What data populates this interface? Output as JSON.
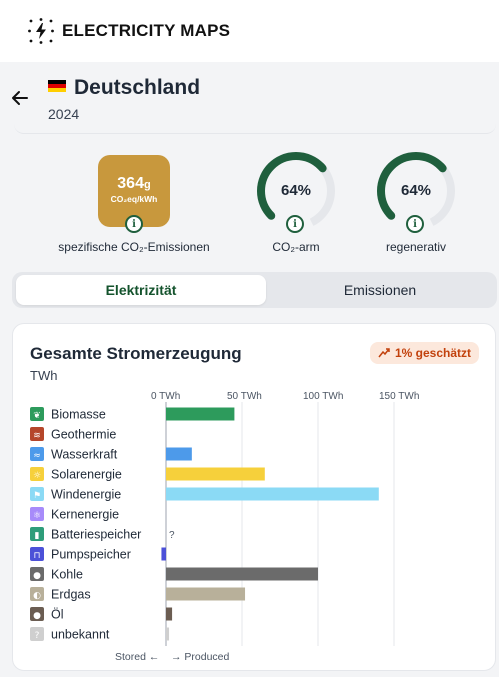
{
  "app": {
    "title": "ELECTRICITY MAPS"
  },
  "header": {
    "country": "Deutschland",
    "year": "2024"
  },
  "metrics": {
    "intensity": {
      "value": "364",
      "unit_suffix": "g",
      "unit": "CO₂eq/kWh",
      "label": "spezifische CO₂-Emissionen",
      "color": "#c8983d"
    },
    "low_carbon": {
      "value": "64%",
      "fraction": 0.64,
      "label": "CO₂-arm"
    },
    "renewable": {
      "value": "64%",
      "fraction": 0.64,
      "label": "regenerativ"
    },
    "gauge_color": "#1f5f3d",
    "info_glyph": "i"
  },
  "tabs": [
    {
      "label": "Elektrizität",
      "active": true
    },
    {
      "label": "Emissionen",
      "active": false
    }
  ],
  "panel": {
    "title": "Gesamte Stromerzeugung",
    "unit": "TWh",
    "estimate_badge": "1% geschätzt",
    "footer_stored": "Stored ←",
    "footer_produced": "→ Produced",
    "missing_marker": "?"
  },
  "chart_data": {
    "type": "bar",
    "orientation": "horizontal",
    "x_ticks": [
      "0 TWh",
      "50 TWh",
      "100 TWh",
      "150 TWh"
    ],
    "x_tick_values": [
      0,
      50,
      100,
      150
    ],
    "xlim": [
      -3,
      160
    ],
    "categories": [
      "Biomasse",
      "Geothermie",
      "Wasserkraft",
      "Solarenergie",
      "Windenergie",
      "Kernenergie",
      "Batteriespeicher",
      "Pumpspeicher",
      "Kohle",
      "Erdgas",
      "Öl",
      "unbekannt"
    ],
    "values": [
      45,
      0,
      17,
      65,
      140,
      0,
      null,
      -3,
      100,
      52,
      4,
      2
    ],
    "colors": [
      "#2d9b5c",
      "#b5462a",
      "#4d9aea",
      "#f6d03b",
      "#8bdaf5",
      "#a78bfa",
      "#2e9d7a",
      "#4c51d8",
      "#6b6b6b",
      "#b8b09a",
      "#6b5d52",
      "#cfcfcf"
    ],
    "icons": [
      "leaf-icon",
      "heat-icon",
      "water-icon",
      "sun-icon",
      "wind-icon",
      "atom-icon",
      "battery-icon",
      "pump-icon",
      "coal-icon",
      "gas-icon",
      "oil-icon",
      "question-icon"
    ],
    "icon_glyphs": [
      "❦",
      "≋",
      "≈",
      "☼",
      "⚑",
      "⚛",
      "▮",
      "⊓",
      "●",
      "◐",
      "●",
      "?"
    ]
  }
}
